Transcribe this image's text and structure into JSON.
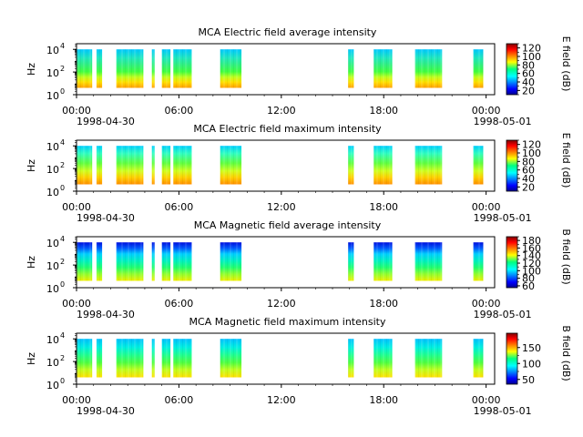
{
  "figure": {
    "x_tick_labels": [
      "00:00",
      "06:00",
      "12:00",
      "18:00",
      "00:00"
    ],
    "date_labels": {
      "start": "1998-04-30",
      "end": "1998-05-01"
    }
  },
  "chart_data": [
    {
      "type": "heatmap",
      "title": "MCA  Electric field average intensity",
      "ylabel": "Hz",
      "ytick_labels": [
        "10",
        "10",
        "10"
      ],
      "ytick_exponents": [
        "0",
        "2",
        "4"
      ],
      "ylim": [
        1,
        31623
      ],
      "yscale": "log",
      "xlim": [
        "1998-04-30 00:00",
        "1998-05-01 00:30"
      ],
      "colorbar": {
        "label": "E field (dB)",
        "ticks": [
          "120",
          "100",
          "80",
          "60",
          "40",
          "20"
        ],
        "range": [
          10,
          130
        ],
        "colormap": "jet"
      },
      "segments": [
        [
          "1998-04-30 00:00",
          "1998-04-30 00:55"
        ],
        [
          "1998-04-30 01:10",
          "1998-04-30 01:30"
        ],
        [
          "1998-04-30 02:20",
          "1998-04-30 03:55"
        ],
        [
          "1998-04-30 04:25",
          "1998-04-30 04:35"
        ],
        [
          "1998-04-30 05:00",
          "1998-04-30 05:30"
        ],
        [
          "1998-04-30 05:40",
          "1998-04-30 06:45"
        ],
        [
          "1998-04-30 08:25",
          "1998-04-30 09:40"
        ],
        [
          "1998-04-30 15:55",
          "1998-04-30 16:15"
        ],
        [
          "1998-04-30 17:25",
          "1998-04-30 18:30"
        ],
        [
          "1998-04-30 19:50",
          "1998-04-30 21:25"
        ],
        [
          "1998-04-30 23:15",
          "1998-04-30 23:50"
        ]
      ]
    },
    {
      "type": "heatmap",
      "title": "MCA  Electric field maximum intensity",
      "ylabel": "Hz",
      "ytick_labels": [
        "10",
        "10",
        "10"
      ],
      "ytick_exponents": [
        "0",
        "2",
        "4"
      ],
      "ylim": [
        1,
        31623
      ],
      "yscale": "log",
      "xlim": [
        "1998-04-30 00:00",
        "1998-05-01 00:30"
      ],
      "colorbar": {
        "label": "E field (dB)",
        "ticks": [
          "120",
          "100",
          "80",
          "60",
          "40",
          "20"
        ],
        "range": [
          10,
          130
        ],
        "colormap": "jet"
      },
      "segments": [
        [
          "1998-04-30 00:00",
          "1998-04-30 00:55"
        ],
        [
          "1998-04-30 01:10",
          "1998-04-30 01:30"
        ],
        [
          "1998-04-30 02:20",
          "1998-04-30 03:55"
        ],
        [
          "1998-04-30 04:25",
          "1998-04-30 04:35"
        ],
        [
          "1998-04-30 05:00",
          "1998-04-30 05:30"
        ],
        [
          "1998-04-30 05:40",
          "1998-04-30 06:45"
        ],
        [
          "1998-04-30 08:25",
          "1998-04-30 09:40"
        ],
        [
          "1998-04-30 15:55",
          "1998-04-30 16:15"
        ],
        [
          "1998-04-30 17:25",
          "1998-04-30 18:30"
        ],
        [
          "1998-04-30 19:50",
          "1998-04-30 21:25"
        ],
        [
          "1998-04-30 23:15",
          "1998-04-30 23:50"
        ]
      ]
    },
    {
      "type": "heatmap",
      "title": "MCA  Magnetic field average intensity",
      "ylabel": "Hz",
      "ytick_labels": [
        "10",
        "10",
        "10"
      ],
      "ytick_exponents": [
        "0",
        "2",
        "4"
      ],
      "ylim": [
        1,
        31623
      ],
      "yscale": "log",
      "xlim": [
        "1998-04-30 00:00",
        "1998-05-01 00:30"
      ],
      "colorbar": {
        "label": "B field (dB)",
        "ticks": [
          "180",
          "160",
          "140",
          "120",
          "100",
          "80",
          "60"
        ],
        "range": [
          55,
          190
        ],
        "colormap": "jet"
      },
      "segments": [
        [
          "1998-04-30 00:00",
          "1998-04-30 00:55"
        ],
        [
          "1998-04-30 01:10",
          "1998-04-30 01:30"
        ],
        [
          "1998-04-30 02:20",
          "1998-04-30 03:55"
        ],
        [
          "1998-04-30 04:25",
          "1998-04-30 04:35"
        ],
        [
          "1998-04-30 05:00",
          "1998-04-30 05:30"
        ],
        [
          "1998-04-30 05:40",
          "1998-04-30 06:45"
        ],
        [
          "1998-04-30 08:25",
          "1998-04-30 09:40"
        ],
        [
          "1998-04-30 15:55",
          "1998-04-30 16:15"
        ],
        [
          "1998-04-30 17:25",
          "1998-04-30 18:30"
        ],
        [
          "1998-04-30 19:50",
          "1998-04-30 21:25"
        ],
        [
          "1998-04-30 23:15",
          "1998-04-30 23:50"
        ]
      ]
    },
    {
      "type": "heatmap",
      "title": "MCA  Magnetic field maximum intensity",
      "ylabel": "Hz",
      "ytick_labels": [
        "10",
        "10",
        "10"
      ],
      "ytick_exponents": [
        "0",
        "2",
        "4"
      ],
      "ylim": [
        1,
        31623
      ],
      "yscale": "log",
      "xlim": [
        "1998-04-30 00:00",
        "1998-05-01 00:30"
      ],
      "colorbar": {
        "label": "B field (dB)",
        "ticks": [
          "150",
          "100",
          "50"
        ],
        "range": [
          35,
          195
        ],
        "colormap": "jet"
      },
      "segments": [
        [
          "1998-04-30 00:00",
          "1998-04-30 00:55"
        ],
        [
          "1998-04-30 01:10",
          "1998-04-30 01:30"
        ],
        [
          "1998-04-30 02:20",
          "1998-04-30 03:55"
        ],
        [
          "1998-04-30 04:25",
          "1998-04-30 04:35"
        ],
        [
          "1998-04-30 05:00",
          "1998-04-30 05:30"
        ],
        [
          "1998-04-30 05:40",
          "1998-04-30 06:45"
        ],
        [
          "1998-04-30 08:25",
          "1998-04-30 09:40"
        ],
        [
          "1998-04-30 15:55",
          "1998-04-30 16:15"
        ],
        [
          "1998-04-30 17:25",
          "1998-04-30 18:30"
        ],
        [
          "1998-04-30 19:50",
          "1998-04-30 21:25"
        ],
        [
          "1998-04-30 23:15",
          "1998-04-30 23:50"
        ]
      ]
    }
  ]
}
